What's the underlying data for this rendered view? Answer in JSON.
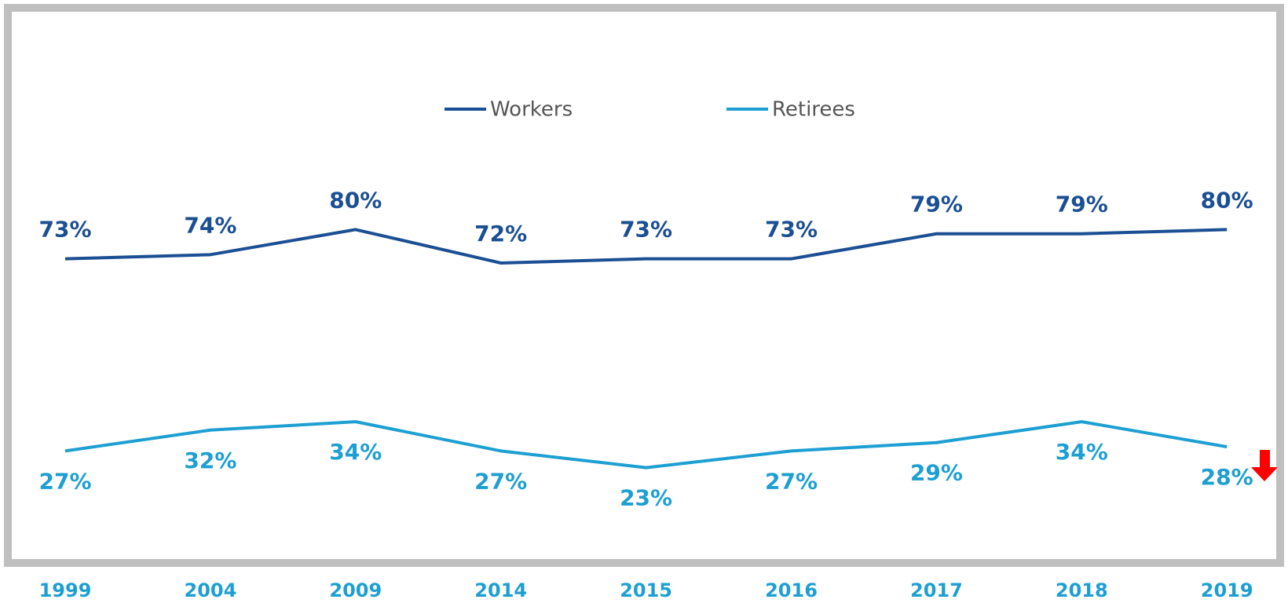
{
  "chart_data": {
    "type": "line",
    "categories": [
      "1999",
      "2004",
      "2009",
      "2014",
      "2015",
      "2016",
      "2017",
      "2018",
      "2019"
    ],
    "series": [
      {
        "name": "Workers",
        "color": "#1b4f93",
        "values": [
          73,
          74,
          80,
          72,
          73,
          73,
          79,
          79,
          80
        ],
        "value_labels": [
          "73%",
          "74%",
          "80%",
          "72%",
          "73%",
          "73%",
          "79%",
          "79%",
          "80%"
        ],
        "label_position": "above"
      },
      {
        "name": "Retirees",
        "color": "#1d9fd2",
        "values": [
          27,
          32,
          34,
          27,
          23,
          27,
          29,
          34,
          28
        ],
        "value_labels": [
          "27%",
          "32%",
          "34%",
          "27%",
          "23%",
          "27%",
          "29%",
          "34%",
          "28%"
        ],
        "label_position": "below"
      }
    ],
    "ylim": [
      0,
      100
    ],
    "grid": false,
    "legend": "top"
  }
}
